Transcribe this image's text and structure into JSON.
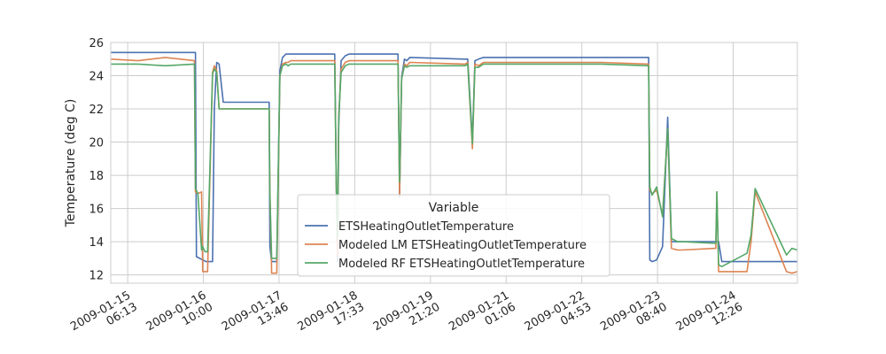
{
  "chart_data": {
    "type": "line",
    "title": "",
    "xlabel": "",
    "ylabel": "Temperature (deg C)",
    "ylim": [
      11.5,
      26
    ],
    "yticks": [
      12,
      14,
      16,
      18,
      20,
      22,
      24,
      26
    ],
    "xlim": [
      "2009-01-15 00:00",
      "2009-01-25 12:00"
    ],
    "xticks": [
      {
        "x": "2009-01-15 06:13",
        "label": [
          "2009-01-15",
          "06:13"
        ]
      },
      {
        "x": "2009-01-16 10:00",
        "label": [
          "2009-01-16",
          "10:00"
        ]
      },
      {
        "x": "2009-01-17 13:46",
        "label": [
          "2009-01-17",
          "13:46"
        ]
      },
      {
        "x": "2009-01-18 17:33",
        "label": [
          "2009-01-18",
          "17:33"
        ]
      },
      {
        "x": "2009-01-19 21:20",
        "label": [
          "2009-01-19",
          "21:20"
        ]
      },
      {
        "x": "2009-01-21 01:06",
        "label": [
          "2009-01-21",
          "01:06"
        ]
      },
      {
        "x": "2009-01-22 04:53",
        "label": [
          "2009-01-22",
          "04:53"
        ]
      },
      {
        "x": "2009-01-23 08:40",
        "label": [
          "2009-01-23",
          "08:40"
        ]
      },
      {
        "x": "2009-01-24 12:26",
        "label": [
          "2009-01-24",
          "12:26"
        ]
      }
    ],
    "grid": true,
    "legend": {
      "title": "Variable",
      "placement": "lower-center"
    },
    "series": [
      {
        "name": "ETSHeatingOutletTemperature",
        "color": "#4c72b0",
        "x": [
          "2009-01-15 00:00",
          "2009-01-16 06:44",
          "2009-01-16 07:05",
          "2009-01-16 07:26",
          "2009-01-16 10:55",
          "2009-01-16 11:33",
          "2009-01-16 13:22",
          "2009-01-16 14:00",
          "2009-01-16 14:54",
          "2009-01-16 15:47",
          "2009-01-16 17:18",
          "2009-01-17 10:08",
          "2009-01-17 10:24",
          "2009-01-17 11:02",
          "2009-01-17 12:56",
          "2009-01-17 14:05",
          "2009-01-17 15:03",
          "2009-01-17 16:17",
          "2009-01-17 17:08",
          "2009-01-17 18:00",
          "2009-01-18 10:12",
          "2009-01-18 10:48",
          "2009-01-18 11:14",
          "2009-01-18 11:40",
          "2009-01-18 12:33",
          "2009-01-18 14:04",
          "2009-01-18 15:26",
          "2009-01-18 16:35",
          "2009-01-19 09:26",
          "2009-01-19 10:01",
          "2009-01-19 10:45",
          "2009-01-19 11:47",
          "2009-01-19 12:38",
          "2009-01-19 13:45",
          "2009-01-20 10:00",
          "2009-01-20 11:00",
          "2009-01-20 12:44",
          "2009-01-20 13:38",
          "2009-01-20 15:00",
          "2009-01-20 16:45",
          "2009-01-23 05:25",
          "2009-01-23 05:49",
          "2009-01-23 06:40",
          "2009-01-23 08:20",
          "2009-01-23 10:30",
          "2009-01-23 12:24",
          "2009-01-23 13:45",
          "2009-01-23 16:00",
          "2009-01-23 17:40",
          "2009-01-24 07:05",
          "2009-01-24 08:15",
          "2009-01-25 12:00"
        ],
        "y": [
          25.4,
          25.4,
          25.4,
          13.1,
          12.8,
          12.8,
          12.8,
          22.0,
          24.8,
          24.7,
          22.4,
          22.4,
          13.7,
          12.8,
          12.8,
          24.3,
          25.1,
          25.3,
          25.3,
          25.3,
          25.3,
          17.3,
          12.8,
          21.0,
          24.9,
          25.2,
          25.3,
          25.3,
          25.3,
          16.7,
          23.9,
          25.0,
          24.9,
          25.1,
          25.0,
          25.0,
          20.1,
          24.9,
          25.0,
          25.1,
          25.1,
          12.9,
          12.8,
          12.9,
          13.7,
          21.5,
          14.0,
          14.0,
          14.0,
          14.0,
          12.8,
          12.8
        ]
      },
      {
        "name": "Modeled LM ETSHeatingOutletTemperature",
        "color": "#dd8452",
        "x": [
          "2009-01-15 00:00",
          "2009-01-15 10:00",
          "2009-01-15 20:00",
          "2009-01-16 06:44",
          "2009-01-16 07:05",
          "2009-01-16 08:00",
          "2009-01-16 09:20",
          "2009-01-16 09:45",
          "2009-01-16 10:35",
          "2009-01-16 11:00",
          "2009-01-16 11:33",
          "2009-01-16 13:22",
          "2009-01-16 14:00",
          "2009-01-16 14:54",
          "2009-01-16 15:47",
          "2009-01-16 17:18",
          "2009-01-17 10:08",
          "2009-01-17 10:24",
          "2009-01-17 11:02",
          "2009-01-17 12:56",
          "2009-01-17 14:05",
          "2009-01-17 15:03",
          "2009-01-17 16:17",
          "2009-01-17 17:08",
          "2009-01-17 18:00",
          "2009-01-18 10:12",
          "2009-01-18 10:48",
          "2009-01-18 11:14",
          "2009-01-18 11:40",
          "2009-01-18 12:33",
          "2009-01-18 14:04",
          "2009-01-18 15:26",
          "2009-01-18 16:35",
          "2009-01-19 09:26",
          "2009-01-19 10:01",
          "2009-01-19 10:45",
          "2009-01-19 11:47",
          "2009-01-19 12:38",
          "2009-01-19 13:45",
          "2009-01-20 10:00",
          "2009-01-20 11:00",
          "2009-01-20 12:44",
          "2009-01-20 13:38",
          "2009-01-20 15:00",
          "2009-01-20 16:45",
          "2009-01-22 12:00",
          "2009-01-23 05:25",
          "2009-01-23 05:49",
          "2009-01-23 06:40",
          "2009-01-23 08:20",
          "2009-01-23 10:30",
          "2009-01-23 12:24",
          "2009-01-23 13:45",
          "2009-01-23 16:00",
          "2009-01-23 17:40",
          "2009-01-24 06:04",
          "2009-01-24 06:26",
          "2009-01-24 07:05",
          "2009-01-24 08:15",
          "2009-01-24 17:30",
          "2009-01-24 19:00",
          "2009-01-24 20:30",
          "2009-01-25 08:00",
          "2009-01-25 10:00",
          "2009-01-25 12:00"
        ],
        "y": [
          25.0,
          24.9,
          25.1,
          24.9,
          17.0,
          16.9,
          17.0,
          12.2,
          12.2,
          12.2,
          12.2,
          24.2,
          24.6,
          24.3,
          22.0,
          22.0,
          22.0,
          17.1,
          12.1,
          12.1,
          24.0,
          24.7,
          24.8,
          24.8,
          24.9,
          24.9,
          17.2,
          13.2,
          21.5,
          24.4,
          24.8,
          24.9,
          24.9,
          24.9,
          16.8,
          23.8,
          24.7,
          24.6,
          24.8,
          24.7,
          24.8,
          19.6,
          24.7,
          24.6,
          24.8,
          24.8,
          24.7,
          17.1,
          16.9,
          17.1,
          15.6,
          20.8,
          13.6,
          13.5,
          13.5,
          13.6,
          17.0,
          12.2,
          12.2,
          12.2,
          14.0,
          17.0,
          12.2,
          12.1,
          12.2
        ]
      },
      {
        "name": "Modeled RF ETSHeatingOutletTemperature",
        "color": "#55a868",
        "x": [
          "2009-01-15 00:00",
          "2009-01-15 10:00",
          "2009-01-15 20:00",
          "2009-01-16 06:44",
          "2009-01-16 07:05",
          "2009-01-16 08:00",
          "2009-01-16 09:20",
          "2009-01-16 09:45",
          "2009-01-16 10:35",
          "2009-01-16 11:00",
          "2009-01-16 11:33",
          "2009-01-16 13:22",
          "2009-01-16 14:00",
          "2009-01-16 14:54",
          "2009-01-16 15:47",
          "2009-01-16 17:18",
          "2009-01-17 10:08",
          "2009-01-17 10:24",
          "2009-01-17 11:02",
          "2009-01-17 12:56",
          "2009-01-17 14:05",
          "2009-01-17 15:03",
          "2009-01-17 16:17",
          "2009-01-17 17:08",
          "2009-01-17 18:00",
          "2009-01-18 10:12",
          "2009-01-18 10:48",
          "2009-01-18 11:14",
          "2009-01-18 11:40",
          "2009-01-18 12:33",
          "2009-01-18 14:04",
          "2009-01-18 15:26",
          "2009-01-18 16:35",
          "2009-01-19 09:26",
          "2009-01-19 10:01",
          "2009-01-19 10:45",
          "2009-01-19 11:47",
          "2009-01-19 12:38",
          "2009-01-19 13:45",
          "2009-01-20 10:00",
          "2009-01-20 11:00",
          "2009-01-20 12:44",
          "2009-01-20 13:38",
          "2009-01-20 15:00",
          "2009-01-20 16:45",
          "2009-01-22 12:00",
          "2009-01-23 05:25",
          "2009-01-23 05:49",
          "2009-01-23 06:40",
          "2009-01-23 08:20",
          "2009-01-23 10:30",
          "2009-01-23 12:24",
          "2009-01-23 13:45",
          "2009-01-23 16:00",
          "2009-01-23 17:40",
          "2009-01-24 06:04",
          "2009-01-24 06:26",
          "2009-01-24 07:05",
          "2009-01-24 08:15",
          "2009-01-24 17:30",
          "2009-01-24 19:00",
          "2009-01-24 20:30",
          "2009-01-25 08:00",
          "2009-01-25 10:00",
          "2009-01-25 12:00"
        ],
        "y": [
          24.7,
          24.7,
          24.6,
          24.7,
          17.2,
          16.9,
          13.5,
          13.7,
          13.4,
          13.4,
          13.4,
          24.1,
          24.4,
          24.2,
          22.0,
          22.0,
          22.0,
          16.9,
          13.0,
          13.0,
          24.0,
          24.6,
          24.7,
          24.6,
          24.7,
          24.7,
          17.3,
          14.2,
          21.5,
          24.2,
          24.6,
          24.7,
          24.7,
          24.7,
          17.6,
          23.8,
          24.6,
          24.5,
          24.6,
          24.6,
          24.7,
          19.9,
          24.5,
          24.5,
          24.7,
          24.7,
          24.6,
          17.3,
          16.8,
          17.3,
          15.5,
          20.8,
          14.2,
          14.0,
          14.0,
          13.9,
          17.0,
          12.6,
          12.5,
          13.3,
          14.4,
          17.2,
          13.2,
          13.6,
          13.5
        ]
      }
    ]
  }
}
